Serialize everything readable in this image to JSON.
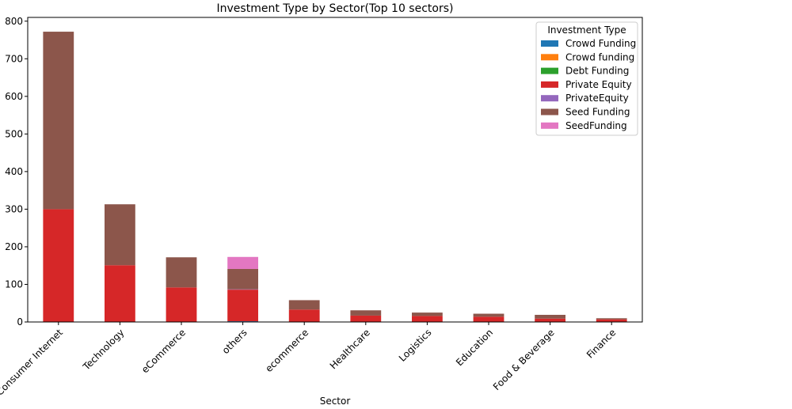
{
  "chart_data": {
    "type": "bar",
    "stacked": true,
    "title": "Investment Type by Sector(Top 10 sectors)",
    "xlabel": "Sector",
    "ylabel": "",
    "ylim": [
      0,
      810
    ],
    "yticks": [
      0,
      100,
      200,
      300,
      400,
      500,
      600,
      700,
      800
    ],
    "grid": false,
    "legend_title": "Investment Type",
    "legend_position": "top-right",
    "categories": [
      "Consumer Internet",
      "Technology",
      "eCommerce",
      "others",
      "ecommerce",
      "Healthcare",
      "Logistics",
      "Education",
      "Food & Beverage",
      "Finance"
    ],
    "series": [
      {
        "name": "Crowd Funding",
        "color": "#1f77b4",
        "values": [
          0,
          0,
          0,
          2,
          0,
          0,
          0,
          0,
          0,
          0
        ]
      },
      {
        "name": "Crowd funding",
        "color": "#ff7f0e",
        "values": [
          0,
          0,
          0,
          0,
          0,
          0,
          0,
          0,
          0,
          0
        ]
      },
      {
        "name": "Debt Funding",
        "color": "#2ca02c",
        "values": [
          1,
          0,
          0,
          0,
          0,
          0,
          0,
          0,
          0,
          0
        ]
      },
      {
        "name": "Private Equity",
        "color": "#d62728",
        "values": [
          299,
          151,
          92,
          84,
          33,
          17,
          16,
          14,
          9,
          7
        ]
      },
      {
        "name": "PrivateEquity",
        "color": "#9467bd",
        "values": [
          0,
          0,
          0,
          1,
          0,
          0,
          0,
          0,
          0,
          0
        ]
      },
      {
        "name": "Seed Funding",
        "color": "#8c564b",
        "values": [
          472,
          162,
          80,
          54,
          25,
          14,
          9,
          8,
          10,
          3
        ]
      },
      {
        "name": "SeedFunding",
        "color": "#e377c2",
        "values": [
          0,
          0,
          0,
          32,
          0,
          0,
          0,
          0,
          0,
          0
        ]
      }
    ]
  }
}
